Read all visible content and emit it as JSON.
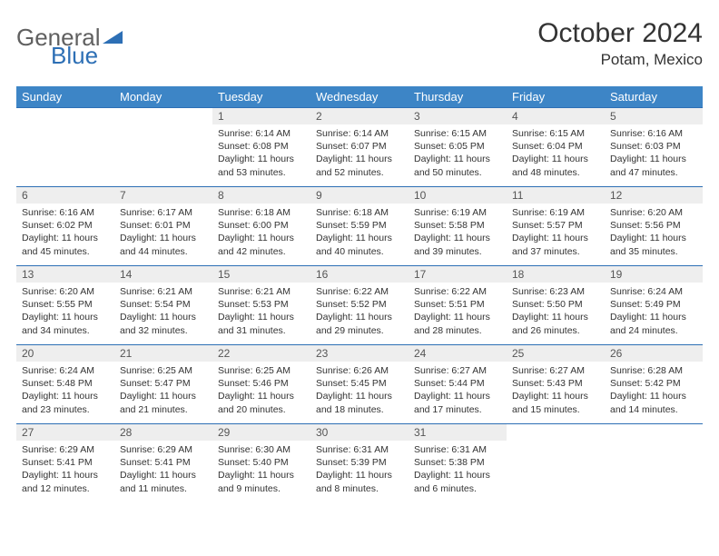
{
  "brand": {
    "part1": "General",
    "part2": "Blue"
  },
  "title": "October 2024",
  "location": "Potam, Mexico",
  "colors": {
    "header_bg": "#3d85c6",
    "border": "#2d6fb5",
    "daynum_bg": "#eeeeee",
    "text": "#333333"
  },
  "weekdays": [
    "Sunday",
    "Monday",
    "Tuesday",
    "Wednesday",
    "Thursday",
    "Friday",
    "Saturday"
  ],
  "weeks": [
    [
      {
        "n": "",
        "sr": "",
        "ss": "",
        "dl": "",
        "empty": true
      },
      {
        "n": "",
        "sr": "",
        "ss": "",
        "dl": "",
        "empty": true
      },
      {
        "n": "1",
        "sr": "Sunrise: 6:14 AM",
        "ss": "Sunset: 6:08 PM",
        "dl": "Daylight: 11 hours and 53 minutes."
      },
      {
        "n": "2",
        "sr": "Sunrise: 6:14 AM",
        "ss": "Sunset: 6:07 PM",
        "dl": "Daylight: 11 hours and 52 minutes."
      },
      {
        "n": "3",
        "sr": "Sunrise: 6:15 AM",
        "ss": "Sunset: 6:05 PM",
        "dl": "Daylight: 11 hours and 50 minutes."
      },
      {
        "n": "4",
        "sr": "Sunrise: 6:15 AM",
        "ss": "Sunset: 6:04 PM",
        "dl": "Daylight: 11 hours and 48 minutes."
      },
      {
        "n": "5",
        "sr": "Sunrise: 6:16 AM",
        "ss": "Sunset: 6:03 PM",
        "dl": "Daylight: 11 hours and 47 minutes."
      }
    ],
    [
      {
        "n": "6",
        "sr": "Sunrise: 6:16 AM",
        "ss": "Sunset: 6:02 PM",
        "dl": "Daylight: 11 hours and 45 minutes."
      },
      {
        "n": "7",
        "sr": "Sunrise: 6:17 AM",
        "ss": "Sunset: 6:01 PM",
        "dl": "Daylight: 11 hours and 44 minutes."
      },
      {
        "n": "8",
        "sr": "Sunrise: 6:18 AM",
        "ss": "Sunset: 6:00 PM",
        "dl": "Daylight: 11 hours and 42 minutes."
      },
      {
        "n": "9",
        "sr": "Sunrise: 6:18 AM",
        "ss": "Sunset: 5:59 PM",
        "dl": "Daylight: 11 hours and 40 minutes."
      },
      {
        "n": "10",
        "sr": "Sunrise: 6:19 AM",
        "ss": "Sunset: 5:58 PM",
        "dl": "Daylight: 11 hours and 39 minutes."
      },
      {
        "n": "11",
        "sr": "Sunrise: 6:19 AM",
        "ss": "Sunset: 5:57 PM",
        "dl": "Daylight: 11 hours and 37 minutes."
      },
      {
        "n": "12",
        "sr": "Sunrise: 6:20 AM",
        "ss": "Sunset: 5:56 PM",
        "dl": "Daylight: 11 hours and 35 minutes."
      }
    ],
    [
      {
        "n": "13",
        "sr": "Sunrise: 6:20 AM",
        "ss": "Sunset: 5:55 PM",
        "dl": "Daylight: 11 hours and 34 minutes."
      },
      {
        "n": "14",
        "sr": "Sunrise: 6:21 AM",
        "ss": "Sunset: 5:54 PM",
        "dl": "Daylight: 11 hours and 32 minutes."
      },
      {
        "n": "15",
        "sr": "Sunrise: 6:21 AM",
        "ss": "Sunset: 5:53 PM",
        "dl": "Daylight: 11 hours and 31 minutes."
      },
      {
        "n": "16",
        "sr": "Sunrise: 6:22 AM",
        "ss": "Sunset: 5:52 PM",
        "dl": "Daylight: 11 hours and 29 minutes."
      },
      {
        "n": "17",
        "sr": "Sunrise: 6:22 AM",
        "ss": "Sunset: 5:51 PM",
        "dl": "Daylight: 11 hours and 28 minutes."
      },
      {
        "n": "18",
        "sr": "Sunrise: 6:23 AM",
        "ss": "Sunset: 5:50 PM",
        "dl": "Daylight: 11 hours and 26 minutes."
      },
      {
        "n": "19",
        "sr": "Sunrise: 6:24 AM",
        "ss": "Sunset: 5:49 PM",
        "dl": "Daylight: 11 hours and 24 minutes."
      }
    ],
    [
      {
        "n": "20",
        "sr": "Sunrise: 6:24 AM",
        "ss": "Sunset: 5:48 PM",
        "dl": "Daylight: 11 hours and 23 minutes."
      },
      {
        "n": "21",
        "sr": "Sunrise: 6:25 AM",
        "ss": "Sunset: 5:47 PM",
        "dl": "Daylight: 11 hours and 21 minutes."
      },
      {
        "n": "22",
        "sr": "Sunrise: 6:25 AM",
        "ss": "Sunset: 5:46 PM",
        "dl": "Daylight: 11 hours and 20 minutes."
      },
      {
        "n": "23",
        "sr": "Sunrise: 6:26 AM",
        "ss": "Sunset: 5:45 PM",
        "dl": "Daylight: 11 hours and 18 minutes."
      },
      {
        "n": "24",
        "sr": "Sunrise: 6:27 AM",
        "ss": "Sunset: 5:44 PM",
        "dl": "Daylight: 11 hours and 17 minutes."
      },
      {
        "n": "25",
        "sr": "Sunrise: 6:27 AM",
        "ss": "Sunset: 5:43 PM",
        "dl": "Daylight: 11 hours and 15 minutes."
      },
      {
        "n": "26",
        "sr": "Sunrise: 6:28 AM",
        "ss": "Sunset: 5:42 PM",
        "dl": "Daylight: 11 hours and 14 minutes."
      }
    ],
    [
      {
        "n": "27",
        "sr": "Sunrise: 6:29 AM",
        "ss": "Sunset: 5:41 PM",
        "dl": "Daylight: 11 hours and 12 minutes."
      },
      {
        "n": "28",
        "sr": "Sunrise: 6:29 AM",
        "ss": "Sunset: 5:41 PM",
        "dl": "Daylight: 11 hours and 11 minutes."
      },
      {
        "n": "29",
        "sr": "Sunrise: 6:30 AM",
        "ss": "Sunset: 5:40 PM",
        "dl": "Daylight: 11 hours and 9 minutes."
      },
      {
        "n": "30",
        "sr": "Sunrise: 6:31 AM",
        "ss": "Sunset: 5:39 PM",
        "dl": "Daylight: 11 hours and 8 minutes."
      },
      {
        "n": "31",
        "sr": "Sunrise: 6:31 AM",
        "ss": "Sunset: 5:38 PM",
        "dl": "Daylight: 11 hours and 6 minutes."
      },
      {
        "n": "",
        "sr": "",
        "ss": "",
        "dl": "",
        "empty": true
      },
      {
        "n": "",
        "sr": "",
        "ss": "",
        "dl": "",
        "empty": true
      }
    ]
  ]
}
